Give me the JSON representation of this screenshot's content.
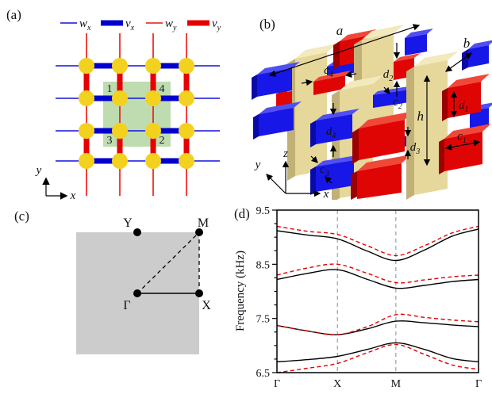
{
  "panel_a": {
    "label": "(a)",
    "legend": [
      {
        "symbol": "thin-blue-line",
        "main": "w",
        "sub": "x"
      },
      {
        "symbol": "thick-blue-bar",
        "main": "v",
        "sub": "x"
      },
      {
        "symbol": "thin-red-line",
        "main": "w",
        "sub": "y"
      },
      {
        "symbol": "thick-red-bar",
        "main": "v",
        "sub": "y"
      }
    ],
    "sites": {
      "s1": "1",
      "s2": "2",
      "s3": "3",
      "s4": "4"
    },
    "axes": {
      "x": "x",
      "y": "y"
    }
  },
  "panel_b": {
    "label": "(b)",
    "dims": {
      "a": "a",
      "b": "b",
      "h": "h",
      "c1": {
        "m": "c",
        "s": "1"
      },
      "c2": {
        "m": "c",
        "s": "2"
      },
      "c3": {
        "m": "c",
        "s": "3"
      },
      "c4": {
        "m": "c",
        "s": "4"
      },
      "d1": {
        "m": "d",
        "s": "1"
      },
      "d2": {
        "m": "d",
        "s": "2"
      },
      "d3": {
        "m": "d",
        "s": "3"
      },
      "d4": {
        "m": "d",
        "s": "4"
      }
    },
    "axes": {
      "x": "x",
      "y": "y",
      "z": "z"
    }
  },
  "panel_c": {
    "label": "(c)",
    "points": {
      "gamma": "Γ",
      "x": "X",
      "m": "M",
      "y": "Y"
    }
  },
  "panel_d": {
    "label": "(d)"
  },
  "chart_data": {
    "type": "line",
    "title": "",
    "xlabel": "",
    "ylabel": "Frequency (kHz)",
    "ylim": [
      6.5,
      9.5
    ],
    "yticks": [
      6.5,
      7.5,
      8.5,
      9.5
    ],
    "ytick_labels": [
      "6.5",
      "7.5",
      "8.5",
      "9.5"
    ],
    "minor_tick_step": 0.25,
    "xtick_labels": [
      "Γ",
      "X",
      "M",
      "Γ"
    ],
    "xtick_positions": [
      0,
      0.3,
      0.59,
      1
    ],
    "gridlines_at": [
      0.3,
      0.59
    ],
    "grid_color": "#8c8c8c",
    "legend_position": "none",
    "sample_x": [
      0,
      0.15,
      0.3,
      0.45,
      0.59,
      0.73,
      0.87,
      1
    ],
    "series": [
      {
        "name": "band1-solid-black",
        "color": "#000000",
        "dash": "none",
        "values": [
          6.7,
          6.74,
          6.8,
          6.93,
          7.05,
          6.93,
          6.76,
          6.7
        ]
      },
      {
        "name": "band1-dashed-red",
        "color": "#e00000",
        "dash": "5,3.5",
        "values": [
          6.5,
          6.58,
          6.67,
          6.87,
          7.02,
          6.84,
          6.64,
          6.56
        ]
      },
      {
        "name": "band2-solid-black",
        "color": "#000000",
        "dash": "none",
        "values": [
          7.37,
          7.27,
          7.2,
          7.31,
          7.45,
          7.42,
          7.38,
          7.35
        ]
      },
      {
        "name": "band2-dashed-red",
        "color": "#e00000",
        "dash": "5,3.5",
        "values": [
          7.37,
          7.27,
          7.2,
          7.35,
          7.57,
          7.52,
          7.47,
          7.44
        ]
      },
      {
        "name": "band3-solid-black",
        "color": "#000000",
        "dash": "none",
        "values": [
          8.22,
          8.33,
          8.4,
          8.22,
          8.06,
          8.11,
          8.18,
          8.22
        ]
      },
      {
        "name": "band3-dashed-red",
        "color": "#e00000",
        "dash": "5,3.5",
        "values": [
          8.3,
          8.43,
          8.5,
          8.33,
          8.16,
          8.21,
          8.27,
          8.3
        ]
      },
      {
        "name": "band4-solid-black",
        "color": "#000000",
        "dash": "none",
        "values": [
          9.12,
          9.04,
          8.97,
          8.74,
          8.57,
          8.76,
          9.02,
          9.15
        ]
      },
      {
        "name": "band4-dashed-red",
        "color": "#e00000",
        "dash": "5,3.5",
        "values": [
          9.2,
          9.11,
          9.05,
          8.84,
          8.66,
          8.84,
          9.08,
          9.2
        ]
      }
    ]
  },
  "colors": {
    "thin_blue": "#1212dd",
    "thick_blue": "#0000cf",
    "thin_red": "#ee1111",
    "thick_red": "#e60000",
    "node_yellow": "#f2d21f",
    "unit_cell_green": "#bedcb0",
    "bz_gray": "#cccccc",
    "pillar_tan": "#e6d79b",
    "block_blue": "#1717e8",
    "block_red": "#e00505",
    "band_black": "#000000",
    "band_red": "#e00000"
  }
}
